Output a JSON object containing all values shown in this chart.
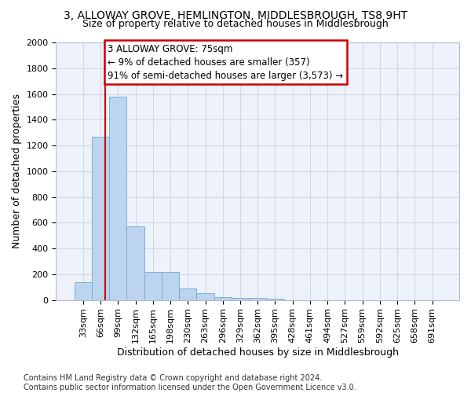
{
  "title": "3, ALLOWAY GROVE, HEMLINGTON, MIDDLESBROUGH, TS8 9HT",
  "subtitle": "Size of property relative to detached houses in Middlesbrough",
  "xlabel": "Distribution of detached houses by size in Middlesbrough",
  "ylabel": "Number of detached properties",
  "footer_line1": "Contains HM Land Registry data © Crown copyright and database right 2024.",
  "footer_line2": "Contains public sector information licensed under the Open Government Licence v3.0.",
  "categories": [
    "33sqm",
    "66sqm",
    "99sqm",
    "132sqm",
    "165sqm",
    "198sqm",
    "230sqm",
    "263sqm",
    "296sqm",
    "329sqm",
    "362sqm",
    "395sqm",
    "428sqm",
    "461sqm",
    "494sqm",
    "527sqm",
    "559sqm",
    "592sqm",
    "625sqm",
    "658sqm",
    "691sqm"
  ],
  "values": [
    140,
    1270,
    1580,
    570,
    220,
    220,
    90,
    50,
    25,
    18,
    18,
    10,
    0,
    0,
    0,
    0,
    0,
    0,
    0,
    0,
    0
  ],
  "bar_color": "#bcd4ee",
  "bar_edge_color": "#6aaad4",
  "marker_color": "#cc0000",
  "annotation_line1": "3 ALLOWAY GROVE: 75sqm",
  "annotation_line2": "← 9% of detached houses are smaller (357)",
  "annotation_line3": "91% of semi-detached houses are larger (3,573) →",
  "annotation_box_color": "#cc0000",
  "ylim": [
    0,
    2000
  ],
  "yticks": [
    0,
    200,
    400,
    600,
    800,
    1000,
    1200,
    1400,
    1600,
    1800,
    2000
  ],
  "grid_color": "#d0d8e8",
  "bg_color": "#edf2fb",
  "title_fontsize": 10,
  "subtitle_fontsize": 9,
  "axis_label_fontsize": 9,
  "tick_fontsize": 8,
  "footer_fontsize": 7,
  "annotation_fontsize": 8.5
}
